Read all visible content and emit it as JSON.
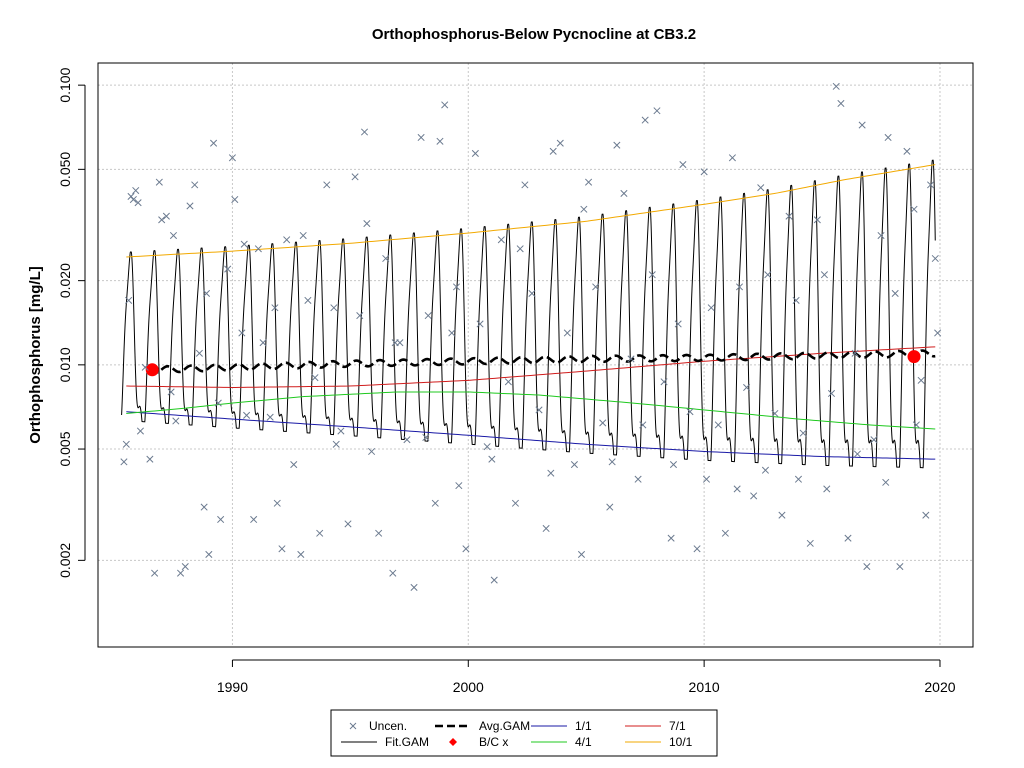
{
  "chart_data": {
    "type": "scatter",
    "title": "Orthophosphorus-Below Pycnocline at CB3.2",
    "xlabel": "",
    "ylabel": "Orthophosphorus [mg/L]",
    "xlim": [
      1984.3,
      2021.4
    ],
    "ylim": [
      0.00098,
      0.12
    ],
    "y_scale": "log",
    "x_ticks": [
      1990,
      2000,
      2010,
      2020
    ],
    "y_ticks": [
      0.002,
      0.005,
      0.01,
      0.02,
      0.05,
      0.1
    ],
    "y_tick_labels": [
      "0.002",
      "0.005",
      "0.010",
      "0.020",
      "0.050",
      "0.100"
    ],
    "grid": true,
    "legend_position": "bottom-center",
    "legend": [
      {
        "label": "Uncen.",
        "symbol": "x",
        "color": "#6b7a8f"
      },
      {
        "label": "Fit.GAM",
        "symbol": "line",
        "color": "#000000"
      },
      {
        "label": "Avg.GAM",
        "symbol": "dashed-thick",
        "color": "#000000"
      },
      {
        "label": "B/C x",
        "symbol": "diamond",
        "color": "#ff0000"
      },
      {
        "label": "1/1",
        "symbol": "line",
        "color": "#1a1aa6"
      },
      {
        "label": "4/1",
        "symbol": "line",
        "color": "#1fc91f"
      },
      {
        "label": "7/1",
        "symbol": "line",
        "color": "#d01c1c"
      },
      {
        "label": "10/1",
        "symbol": "line",
        "color": "#f2a900"
      }
    ],
    "series": [
      {
        "name": "1/1",
        "color": "#1a1aa6",
        "x": [
          1985.5,
          1990,
          1995,
          2000,
          2005,
          2010,
          2015,
          2019.8
        ],
        "y": [
          0.0068,
          0.0064,
          0.006,
          0.0056,
          0.0052,
          0.0049,
          0.0047,
          0.0046
        ]
      },
      {
        "name": "4/1",
        "color": "#1fc91f",
        "x": [
          1985.5,
          1988,
          1990,
          1993,
          1997,
          2000,
          2003,
          2007,
          2010,
          2014,
          2017,
          2019.8
        ],
        "y": [
          0.0067,
          0.007,
          0.0073,
          0.0077,
          0.008,
          0.008,
          0.0078,
          0.0073,
          0.0069,
          0.0064,
          0.0061,
          0.0059
        ]
      },
      {
        "name": "7/1",
        "color": "#d01c1c",
        "x": [
          1985.5,
          1990,
          1995,
          2000,
          2005,
          2010,
          2015,
          2019.8
        ],
        "y": [
          0.0084,
          0.0083,
          0.0084,
          0.0088,
          0.0095,
          0.0103,
          0.011,
          0.0116
        ]
      },
      {
        "name": "10/1",
        "color": "#f2a900",
        "x": [
          1985.5,
          1990,
          1995,
          2000,
          2005,
          2010,
          2013,
          2016,
          2019.8
        ],
        "y": [
          0.0243,
          0.0255,
          0.0272,
          0.0296,
          0.0326,
          0.0375,
          0.041,
          0.046,
          0.052
        ]
      },
      {
        "name": "Avg.GAM",
        "color": "#000000",
        "x": [
          1986.5,
          1990,
          1995,
          2000,
          2005,
          2010,
          2015,
          2019.8
        ],
        "y": [
          0.0096,
          0.0098,
          0.0101,
          0.0103,
          0.0105,
          0.0106,
          0.0108,
          0.011
        ]
      },
      {
        "name": "Fit.GAM",
        "color": "#000000",
        "x_start": 1985.3,
        "x_end": 2019.8
      },
      {
        "name": "B/C x",
        "color": "#ff0000",
        "x": [
          1986.6,
          2018.9
        ],
        "y": [
          0.0096,
          0.0107
        ]
      }
    ],
    "scatter_points": [
      [
        1985.4,
        0.0045
      ],
      [
        1985.5,
        0.0052
      ],
      [
        1985.6,
        0.017
      ],
      [
        1985.7,
        0.04
      ],
      [
        1985.8,
        0.039
      ],
      [
        1985.9,
        0.042
      ],
      [
        1986.1,
        0.0058
      ],
      [
        1986.3,
        0.0098
      ],
      [
        1986.5,
        0.0046
      ],
      [
        1986.7,
        0.0018
      ],
      [
        1986.9,
        0.045
      ],
      [
        1987.0,
        0.033
      ],
      [
        1987.2,
        0.034
      ],
      [
        1987.4,
        0.008
      ],
      [
        1987.6,
        0.0063
      ],
      [
        1987.8,
        0.0018
      ],
      [
        1988.0,
        0.0019
      ],
      [
        1988.2,
        0.037
      ],
      [
        1988.4,
        0.044
      ],
      [
        1988.6,
        0.011
      ],
      [
        1988.8,
        0.0031
      ],
      [
        1989.0,
        0.0021
      ],
      [
        1989.2,
        0.062
      ],
      [
        1989.4,
        0.0073
      ],
      [
        1989.5,
        0.0028
      ],
      [
        1989.8,
        0.022
      ],
      [
        1990.0,
        0.055
      ],
      [
        1990.1,
        0.039
      ],
      [
        1990.4,
        0.013
      ],
      [
        1990.6,
        0.0066
      ],
      [
        1990.9,
        0.0028
      ],
      [
        1991.1,
        0.026
      ],
      [
        1991.3,
        0.012
      ],
      [
        1991.6,
        0.0065
      ],
      [
        1991.9,
        0.0032
      ],
      [
        1992.1,
        0.0022
      ],
      [
        1992.3,
        0.028
      ],
      [
        1992.6,
        0.0044
      ],
      [
        1992.9,
        0.0021
      ],
      [
        1993.2,
        0.017
      ],
      [
        1993.5,
        0.009
      ],
      [
        1993.7,
        0.0025
      ],
      [
        1994.0,
        0.044
      ],
      [
        1994.3,
        0.016
      ],
      [
        1994.6,
        0.0058
      ],
      [
        1994.9,
        0.0027
      ],
      [
        1995.2,
        0.047
      ],
      [
        1995.4,
        0.015
      ],
      [
        1995.6,
        0.068
      ],
      [
        1995.9,
        0.0049
      ],
      [
        1996.2,
        0.0025
      ],
      [
        1996.5,
        0.024
      ],
      [
        1996.8,
        0.0018
      ],
      [
        1997.1,
        0.012
      ],
      [
        1997.4,
        0.0054
      ],
      [
        1997.7,
        0.0016
      ],
      [
        1998.0,
        0.065
      ],
      [
        1998.3,
        0.015
      ],
      [
        1998.6,
        0.0032
      ],
      [
        1998.8,
        0.063
      ],
      [
        1999.0,
        0.085
      ],
      [
        1999.3,
        0.013
      ],
      [
        1999.6,
        0.0037
      ],
      [
        1999.9,
        0.0022
      ],
      [
        2000.3,
        0.057
      ],
      [
        2000.5,
        0.014
      ],
      [
        2000.8,
        0.0051
      ],
      [
        2001.1,
        0.0017
      ],
      [
        2001.4,
        0.028
      ],
      [
        2001.7,
        0.0087
      ],
      [
        2002.0,
        0.0032
      ],
      [
        2002.4,
        0.044
      ],
      [
        2002.7,
        0.018
      ],
      [
        2003.0,
        0.0069
      ],
      [
        2003.3,
        0.0026
      ],
      [
        2003.6,
        0.058
      ],
      [
        2003.9,
        0.062
      ],
      [
        2004.2,
        0.013
      ],
      [
        2004.5,
        0.0044
      ],
      [
        2004.8,
        0.0021
      ],
      [
        2005.1,
        0.045
      ],
      [
        2005.4,
        0.019
      ],
      [
        2005.7,
        0.0062
      ],
      [
        2006.0,
        0.0031
      ],
      [
        2006.3,
        0.061
      ],
      [
        2006.6,
        0.041
      ],
      [
        2006.9,
        0.0105
      ],
      [
        2007.2,
        0.0039
      ],
      [
        2007.5,
        0.075
      ],
      [
        2007.8,
        0.021
      ],
      [
        2008.0,
        0.081
      ],
      [
        2008.3,
        0.0087
      ],
      [
        2008.6,
        0.0024
      ],
      [
        2008.9,
        0.014
      ],
      [
        2009.1,
        0.052
      ],
      [
        2009.4,
        0.0068
      ],
      [
        2009.7,
        0.0022
      ],
      [
        2010.0,
        0.049
      ],
      [
        2010.3,
        0.016
      ],
      [
        2010.6,
        0.0061
      ],
      [
        2010.9,
        0.0025
      ],
      [
        2011.2,
        0.055
      ],
      [
        2011.5,
        0.019
      ],
      [
        2011.8,
        0.0083
      ],
      [
        2012.1,
        0.0034
      ],
      [
        2012.4,
        0.043
      ],
      [
        2012.7,
        0.021
      ],
      [
        2013.0,
        0.0067
      ],
      [
        2013.3,
        0.0029
      ],
      [
        2013.6,
        0.034
      ],
      [
        2013.9,
        0.017
      ],
      [
        2014.2,
        0.0057
      ],
      [
        2014.5,
        0.0023
      ],
      [
        2014.8,
        0.033
      ],
      [
        2015.1,
        0.021
      ],
      [
        2015.4,
        0.0079
      ],
      [
        2015.6,
        0.099
      ],
      [
        2015.8,
        0.086
      ],
      [
        2016.1,
        0.0024
      ],
      [
        2016.4,
        0.011
      ],
      [
        2016.7,
        0.072
      ],
      [
        2016.9,
        0.0019
      ],
      [
        2017.2,
        0.0054
      ],
      [
        2017.5,
        0.029
      ],
      [
        2017.8,
        0.065
      ],
      [
        2018.1,
        0.018
      ],
      [
        2018.3,
        0.0019
      ],
      [
        2018.6,
        0.058
      ],
      [
        2018.9,
        0.036
      ],
      [
        2019.2,
        0.0088
      ],
      [
        2019.4,
        0.0029
      ],
      [
        2019.6,
        0.044
      ],
      [
        2019.8,
        0.024
      ],
      [
        2019.9,
        0.013
      ],
      [
        1986.0,
        0.038
      ],
      [
        1987.5,
        0.029
      ],
      [
        1988.9,
        0.018
      ],
      [
        1990.5,
        0.027
      ],
      [
        1991.8,
        0.016
      ],
      [
        1993.0,
        0.029
      ],
      [
        1994.4,
        0.0052
      ],
      [
        1995.7,
        0.032
      ],
      [
        1996.9,
        0.012
      ],
      [
        1998.2,
        0.0055
      ],
      [
        1999.5,
        0.019
      ],
      [
        2001.0,
        0.0046
      ],
      [
        2002.2,
        0.026
      ],
      [
        2003.5,
        0.0041
      ],
      [
        2004.9,
        0.036
      ],
      [
        2006.1,
        0.0045
      ],
      [
        2007.4,
        0.0061
      ],
      [
        2008.7,
        0.0044
      ],
      [
        2010.1,
        0.0039
      ],
      [
        2011.4,
        0.0036
      ],
      [
        2012.6,
        0.0042
      ],
      [
        2014.0,
        0.0039
      ],
      [
        2015.2,
        0.0036
      ],
      [
        2016.5,
        0.0048
      ],
      [
        2017.7,
        0.0038
      ],
      [
        2019.0,
        0.0061
      ]
    ]
  }
}
